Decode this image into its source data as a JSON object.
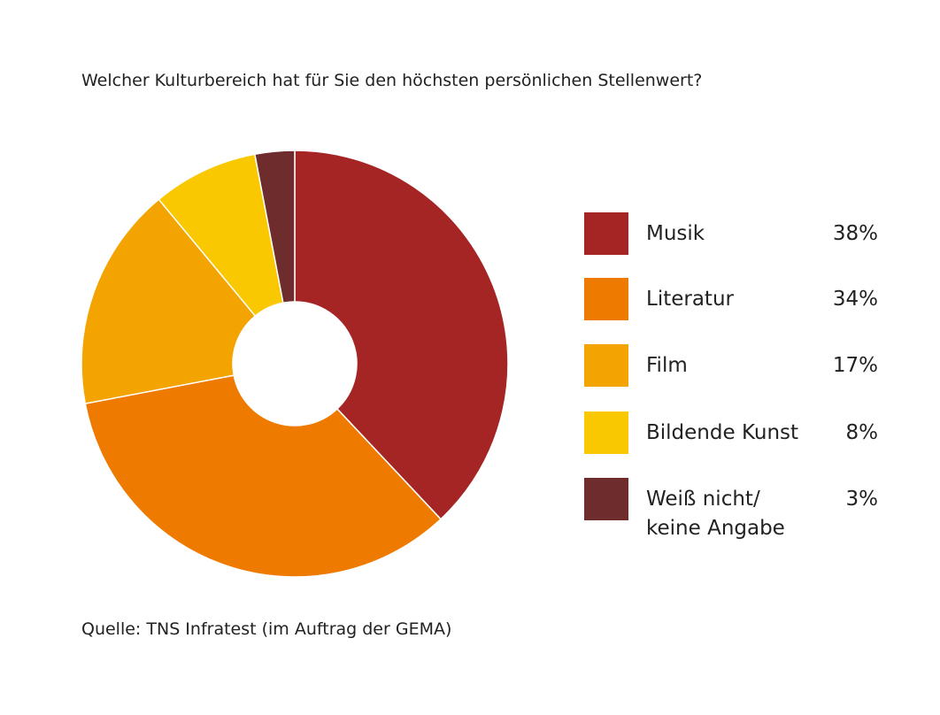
{
  "chart_data": {
    "type": "donut",
    "title": "Welcher Kulturbereich hat für Sie den höchsten persönlichen Stellenwert?",
    "categories": [
      "Musik",
      "Literatur",
      "Film",
      "Bildende Kunst",
      "Weiß nicht/ keine Angabe"
    ],
    "values": [
      38,
      34,
      17,
      8,
      3
    ],
    "value_labels": [
      "38%",
      "34%",
      "17%",
      "8%",
      "3%"
    ],
    "colors": [
      "#a52424",
      "#ee7a00",
      "#f4a400",
      "#f9c800",
      "#6e2c2c"
    ],
    "source": "Quelle: TNS Infratest (im Auftrag der GEMA)"
  }
}
